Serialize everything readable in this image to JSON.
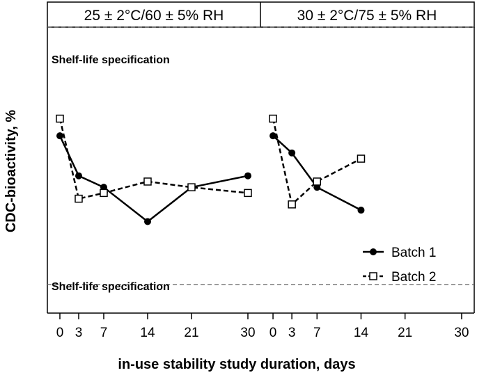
{
  "chart_data": {
    "type": "line",
    "ylabel": "CDC-bioactivity, %",
    "xlabel": "in-use stability study duration, days",
    "xlim": [
      -2,
      32
    ],
    "ylim": [
      0,
      100
    ],
    "x_ticks": [
      0,
      3,
      7,
      14,
      21,
      30
    ],
    "x_tick_labels": [
      "0",
      "3",
      "7",
      "14",
      "21",
      "30"
    ],
    "spec_label": "Shelf-life specification",
    "spec_limits": [
      100,
      10
    ],
    "legend": [
      "Batch 1",
      "Batch 2"
    ],
    "panels": [
      {
        "strip": "25 ± 2°C/60 ± 5% RH",
        "series": [
          {
            "name": "Batch 1",
            "x": [
              0,
              3,
              7,
              14,
              21,
              30
            ],
            "y": [
              62,
              48,
              44,
              32,
              44,
              48
            ]
          },
          {
            "name": "Batch 2",
            "x": [
              0,
              3,
              7,
              14,
              21,
              30
            ],
            "y": [
              68,
              40,
              42,
              46,
              44,
              42
            ]
          }
        ]
      },
      {
        "strip": "30 ± 2°C/75 ± 5% RH",
        "series": [
          {
            "name": "Batch 1",
            "x": [
              0,
              3,
              7,
              14
            ],
            "y": [
              62,
              56,
              44,
              36
            ]
          },
          {
            "name": "Batch 2",
            "x": [
              0,
              3,
              7,
              14
            ],
            "y": [
              68,
              38,
              46,
              54
            ]
          }
        ]
      }
    ]
  }
}
